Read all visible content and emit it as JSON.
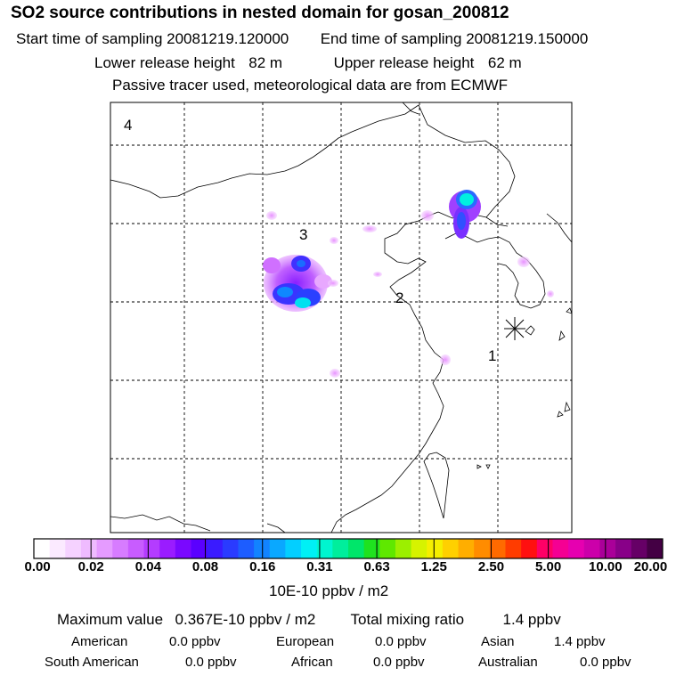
{
  "header": {
    "title": "SO2 source contributions in nested domain for gosan_200812",
    "start_label": "Start time of sampling",
    "start_value": "20081219.120000",
    "end_label": "End time of sampling",
    "end_value": "20081219.150000",
    "lower_label": "Lower release height",
    "lower_value": "82 m",
    "upper_label": "Upper release height",
    "upper_value": "62 m",
    "note": "Passive tracer used, meteorological data are from ECMWF"
  },
  "map": {
    "region_labels": [
      "1",
      "2",
      "3",
      "4"
    ],
    "receptor_marker": "asterisk-marker"
  },
  "colorbar": {
    "colors": [
      "#ffffff",
      "#fbeaff",
      "#f5d2ff",
      "#efbbff",
      "#e59bff",
      "#d77cff",
      "#c85cff",
      "#b43cff",
      "#9a1cff",
      "#7a08ff",
      "#5a00ff",
      "#3a1bff",
      "#2a3bff",
      "#1d5dff",
      "#1283ff",
      "#0aa8ff",
      "#03cfff",
      "#00f0f5",
      "#00f5cf",
      "#00ee9c",
      "#00e66a",
      "#1fe21f",
      "#5fe800",
      "#9cef00",
      "#d6f300",
      "#f5ef00",
      "#ffd000",
      "#ffae00",
      "#ff8c00",
      "#ff6a00",
      "#ff3c00",
      "#ff1010",
      "#ff0066",
      "#f50093",
      "#e600b0",
      "#cc00aa",
      "#aa0099",
      "#880088",
      "#660066",
      "#440044"
    ],
    "ticks": [
      "0.00",
      "0.02",
      "0.04",
      "0.08",
      "0.16",
      "0.31",
      "0.63",
      "1.25",
      "2.50",
      "5.00",
      "10.00",
      "20.00"
    ],
    "units": "10E-10 ppbv / m2"
  },
  "stats": {
    "max_label": "Maximum value",
    "max_value": "0.367E-10 ppbv / m2",
    "total_label": "Total mixing ratio",
    "total_value": "1.4 ppbv",
    "regions": [
      {
        "name": "American",
        "value": "0.0 ppbv"
      },
      {
        "name": "European",
        "value": "0.0 ppbv"
      },
      {
        "name": "Asian",
        "value": "1.4 ppbv"
      },
      {
        "name": "South American",
        "value": "0.0 ppbv"
      },
      {
        "name": "African",
        "value": "0.0 ppbv"
      },
      {
        "name": "Australian",
        "value": "0.0 ppbv"
      }
    ]
  }
}
